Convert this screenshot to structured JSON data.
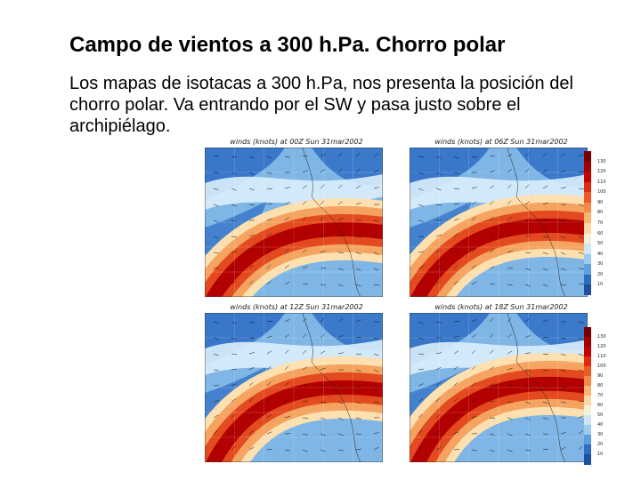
{
  "slide": {
    "title": "Campo de vientos a 300 h.Pa. Chorro polar",
    "body": "Los mapas de isotacas a 300 h.Pa, nos presenta la posición del chorro polar. Va entrando por el SW y pasa justo sobre el archipiélago."
  },
  "figures": [
    {
      "caption": "winds (knots) at 00Z Sun 31mar2002"
    },
    {
      "caption": "winds (knots) at 06Z Sun 31mar2002"
    },
    {
      "caption": "winds (knots) at 12Z Sun 31mar2002"
    },
    {
      "caption": "winds (knots) at 18Z Sun 31mar2002"
    }
  ],
  "colorbar_top": {
    "labels": [
      "130",
      "120",
      "110",
      "100",
      "90",
      "80",
      "70",
      "60",
      "50",
      "40",
      "30",
      "20",
      "10"
    ]
  },
  "colorbar_bottom": {
    "labels": [
      "130",
      "120",
      "110",
      "100",
      "90",
      "80",
      "70",
      "60",
      "50",
      "40",
      "30",
      "20",
      "10"
    ]
  },
  "colors": {
    "jet_core": "#b30000",
    "strong": "#e34a1f",
    "moderate": "#f4a460",
    "weak": "#fde0b0",
    "calm": "#dceefb",
    "light_blue": "#7fb6e6",
    "blue": "#2b6cc4"
  }
}
